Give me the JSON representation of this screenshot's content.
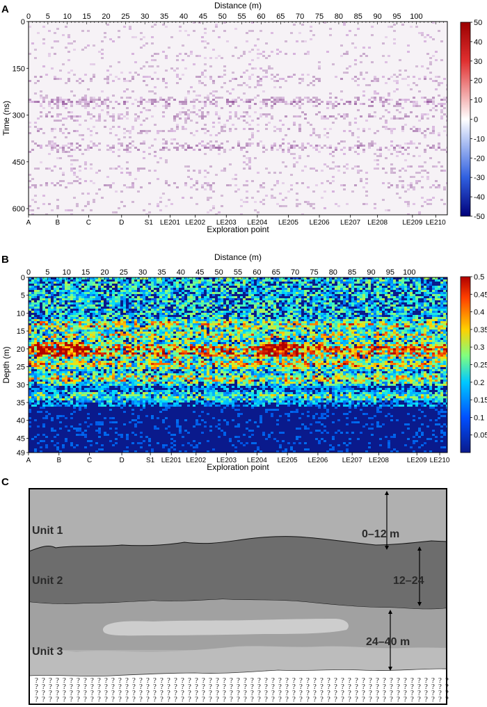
{
  "colors": {
    "gpr_pos": "#9b0000",
    "gpr_mid": "#ffffff",
    "gpr_neg": "#00007a",
    "ert_low": "#0a1a8c",
    "ert_mid": "#00c8ff",
    "ert_hi": "#b00000",
    "unit1": "#b0b0b0",
    "unit2": "#6d6d6d",
    "unit3": "#a1a1a1",
    "lens": "#c8c8c8",
    "bedrock": "#ffffff"
  },
  "chart_data": [
    {
      "panel": "A",
      "type": "heatmap",
      "xlabel": "Distance (m)",
      "ylabel": "Time (ns)",
      "x2label": "Exploration point",
      "xlim": [
        0,
        108
      ],
      "ylim": [
        0,
        620
      ],
      "y_reversed": true,
      "x_ticks": [
        0,
        5,
        10,
        15,
        20,
        25,
        30,
        35,
        40,
        45,
        50,
        55,
        60,
        65,
        70,
        75,
        80,
        85,
        90,
        95,
        100
      ],
      "y_ticks": [
        0,
        150,
        300,
        450,
        600
      ],
      "exploration_points": [
        {
          "label": "A",
          "x": 0
        },
        {
          "label": "B",
          "x": 7.5
        },
        {
          "label": "C",
          "x": 15.5
        },
        {
          "label": "D",
          "x": 24
        },
        {
          "label": "S1",
          "x": 31
        },
        {
          "label": "LE201",
          "x": 36.5
        },
        {
          "label": "LE202",
          "x": 43
        },
        {
          "label": "LE203",
          "x": 51
        },
        {
          "label": "LE204",
          "x": 59
        },
        {
          "label": "LE205",
          "x": 67
        },
        {
          "label": "LE206",
          "x": 75
        },
        {
          "label": "LE207",
          "x": 83
        },
        {
          "label": "LE208",
          "x": 90
        },
        {
          "label": "LE209",
          "x": 99
        },
        {
          "label": "LE210",
          "x": 105
        }
      ],
      "colorbar": {
        "min": -50,
        "max": 50,
        "ticks": [
          50,
          40,
          30,
          20,
          10,
          0,
          -10,
          -20,
          -30,
          -40,
          -50
        ]
      }
    },
    {
      "panel": "B",
      "type": "heatmap",
      "xlabel": "Distance (m)",
      "ylabel": "Depth (m)",
      "x2label": "Exploration point",
      "xlim": [
        0,
        110
      ],
      "ylim": [
        0,
        49
      ],
      "y_reversed": true,
      "x_ticks": [
        0,
        5,
        10,
        15,
        20,
        25,
        30,
        35,
        40,
        45,
        50,
        55,
        60,
        65,
        70,
        75,
        80,
        85,
        90,
        95,
        100
      ],
      "y_ticks": [
        0,
        5,
        10,
        15,
        20,
        25,
        30,
        35,
        40,
        45,
        49
      ],
      "exploration_points": [
        {
          "label": "A",
          "x": 0
        },
        {
          "label": "B",
          "x": 8
        },
        {
          "label": "C",
          "x": 16
        },
        {
          "label": "D",
          "x": 24.5
        },
        {
          "label": "S1",
          "x": 32
        },
        {
          "label": "LE201",
          "x": 37.5
        },
        {
          "label": "LE202",
          "x": 44
        },
        {
          "label": "LE203",
          "x": 52
        },
        {
          "label": "LE204",
          "x": 60
        },
        {
          "label": "LE205",
          "x": 68
        },
        {
          "label": "LE206",
          "x": 76
        },
        {
          "label": "LE207",
          "x": 85
        },
        {
          "label": "LE208",
          "x": 92
        },
        {
          "label": "LE209",
          "x": 102
        },
        {
          "label": "LE210",
          "x": 108
        }
      ],
      "colorbar": {
        "min": 0.0,
        "max": 0.5,
        "ticks": [
          0.5,
          0.45,
          0.4,
          0.35,
          0.3,
          0.25,
          0.2,
          0.15,
          0.1,
          0.05
        ]
      }
    }
  ],
  "panel_c": {
    "letter": "C",
    "units": [
      "Unit 1",
      "Unit 2",
      "Unit 3"
    ],
    "thickness_labels": [
      "0–12 m",
      "12–24",
      "24–40 m"
    ]
  },
  "panel_letters": [
    "A",
    "B",
    "C"
  ]
}
